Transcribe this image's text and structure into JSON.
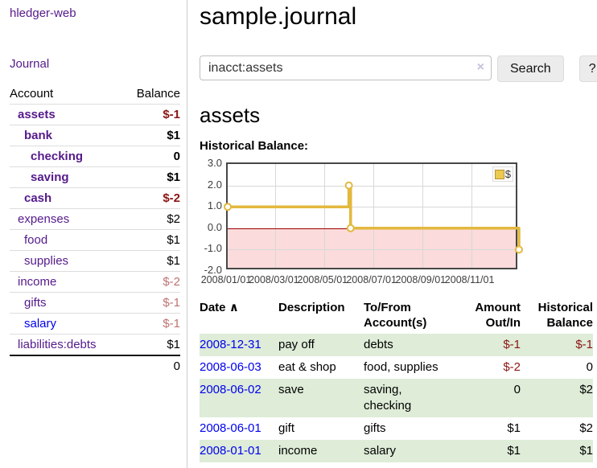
{
  "sidebar": {
    "app_title": "hledger-web",
    "journal_link": "Journal",
    "accounts_table": {
      "account_header": "Account",
      "balance_header": "Balance",
      "rows": [
        {
          "name": "assets",
          "indent": 1,
          "bold": true,
          "link": "visited",
          "balance": "$-1",
          "balance_class": "neg-strong"
        },
        {
          "name": "bank",
          "indent": 2,
          "bold": true,
          "link": "visited",
          "balance": "$1",
          "balance_class": ""
        },
        {
          "name": "checking",
          "indent": 3,
          "bold": true,
          "link": "visited",
          "balance": "0",
          "balance_class": ""
        },
        {
          "name": "saving",
          "indent": 3,
          "bold": true,
          "link": "visited",
          "balance": "$1",
          "balance_class": ""
        },
        {
          "name": "cash",
          "indent": 2,
          "bold": true,
          "link": "visited",
          "balance": "$-2",
          "balance_class": "neg-strong"
        },
        {
          "name": "expenses",
          "indent": 1,
          "bold": false,
          "link": "visited",
          "balance": "$2",
          "balance_class": ""
        },
        {
          "name": "food",
          "indent": 2,
          "bold": false,
          "link": "visited",
          "balance": "$1",
          "balance_class": ""
        },
        {
          "name": "supplies",
          "indent": 2,
          "bold": false,
          "link": "visited",
          "balance": "$1",
          "balance_class": ""
        },
        {
          "name": "income",
          "indent": 1,
          "bold": false,
          "link": "visited",
          "balance": "$-2",
          "balance_class": "neg-soft"
        },
        {
          "name": "gifts",
          "indent": 2,
          "bold": false,
          "link": "visited",
          "balance": "$-1",
          "balance_class": "neg-soft"
        },
        {
          "name": "salary",
          "indent": 2,
          "bold": false,
          "link": "unvisited",
          "balance": "$-1",
          "balance_class": "neg-soft"
        },
        {
          "name": "liabilities:debts",
          "indent": 1,
          "bold": false,
          "link": "visited",
          "balance": "$1",
          "balance_class": ""
        }
      ],
      "total": "0"
    }
  },
  "header": {
    "title": "sample.journal"
  },
  "search": {
    "query": "inacct:assets",
    "clear_icon": "×",
    "search_button": "Search",
    "help_button": "?"
  },
  "account_page": {
    "heading": "assets",
    "chart_heading": "Historical Balance:"
  },
  "chart_data": {
    "type": "line",
    "title": "Historical Balance",
    "step": true,
    "ylim": [
      -2,
      3
    ],
    "x_range": [
      "2008-01-01",
      "2008-12-31"
    ],
    "y_ticks": [
      3.0,
      2.0,
      1.0,
      0.0,
      -1.0,
      -2.0
    ],
    "x_ticks": [
      {
        "label": "2008/01/01",
        "f": 0.0
      },
      {
        "label": "2008/03/01",
        "f": 0.164
      },
      {
        "label": "2008/05/01",
        "f": 0.331
      },
      {
        "label": "2008/07/01",
        "f": 0.499
      },
      {
        "label": "2008/09/01",
        "f": 0.668
      },
      {
        "label": "2008/11/01",
        "f": 0.836
      }
    ],
    "series": [
      {
        "name": "$",
        "color": "#e3b83e",
        "points": [
          {
            "x": "2008-01-01",
            "y": 1,
            "f": 0.0
          },
          {
            "x": "2008-06-01",
            "y": 2,
            "f": 0.416
          },
          {
            "x": "2008-06-03",
            "y": 0,
            "f": 0.422
          },
          {
            "x": "2008-12-31",
            "y": -1,
            "f": 1.0
          }
        ]
      }
    ],
    "legend": [
      "$"
    ],
    "legend_position": "top-right",
    "grid": true,
    "negative_region_color": "#fbdbdb",
    "zero_line_color": "#9b0000"
  },
  "register_table": {
    "headers": {
      "date": "Date",
      "sort_icon": "∧",
      "description": "Description",
      "accounts": "To/From Account(s)",
      "amount": "Amount Out/In",
      "balance": "Historical Balance"
    },
    "rows": [
      {
        "date": "2008-12-31",
        "description": "pay off",
        "accounts": "debts",
        "amount": "$-1",
        "amount_neg": true,
        "balance": "$-1",
        "balance_neg": true,
        "shaded": true
      },
      {
        "date": "2008-06-03",
        "description": "eat & shop",
        "accounts": "food, supplies",
        "amount": "$-2",
        "amount_neg": true,
        "balance": "0",
        "balance_neg": false,
        "shaded": false
      },
      {
        "date": "2008-06-02",
        "description": "save",
        "accounts": "saving, checking",
        "amount": "0",
        "amount_neg": false,
        "balance": "$2",
        "balance_neg": false,
        "shaded": true
      },
      {
        "date": "2008-06-01",
        "description": "gift",
        "accounts": "gifts",
        "amount": "$1",
        "amount_neg": false,
        "balance": "$2",
        "balance_neg": false,
        "shaded": false
      },
      {
        "date": "2008-01-01",
        "description": "income",
        "accounts": "salary",
        "amount": "$1",
        "amount_neg": false,
        "balance": "$1",
        "balance_neg": false,
        "shaded": true
      }
    ]
  }
}
